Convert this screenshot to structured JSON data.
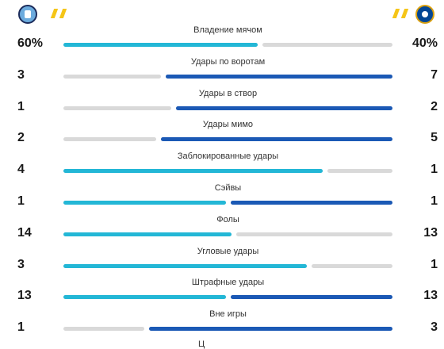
{
  "header": {
    "home_logo": "manchester-city-crest",
    "away_logo": "chelsea-crest",
    "accent_color": "#f5c518"
  },
  "colors": {
    "home_bar": "#23b7d6",
    "away_bar": "#1b59b5",
    "track": "#d9d9d9"
  },
  "stats": [
    {
      "label": "Владение мячом",
      "home": "60%",
      "away": "40%",
      "home_hl": true,
      "away_hl": false
    },
    {
      "label": "Удары по воротам",
      "home": "3",
      "away": "7",
      "home_hl": false,
      "away_hl": true
    },
    {
      "label": "Удары в створ",
      "home": "1",
      "away": "2",
      "home_hl": false,
      "away_hl": true
    },
    {
      "label": "Удары мимо",
      "home": "2",
      "away": "5",
      "home_hl": false,
      "away_hl": true
    },
    {
      "label": "Заблокированные удары",
      "home": "4",
      "away": "1",
      "home_hl": true,
      "away_hl": false
    },
    {
      "label": "Сэйвы",
      "home": "1",
      "away": "1",
      "home_hl": true,
      "away_hl": true
    },
    {
      "label": "Фолы",
      "home": "14",
      "away": "13",
      "home_hl": true,
      "away_hl": false
    },
    {
      "label": "Угловые удары",
      "home": "3",
      "away": "1",
      "home_hl": true,
      "away_hl": false
    },
    {
      "label": "Штрафные удары",
      "home": "13",
      "away": "13",
      "home_hl": true,
      "away_hl": true
    },
    {
      "label": "Вне игры",
      "home": "1",
      "away": "3",
      "home_hl": false,
      "away_hl": true
    }
  ],
  "next_label_partial": "Ц"
}
